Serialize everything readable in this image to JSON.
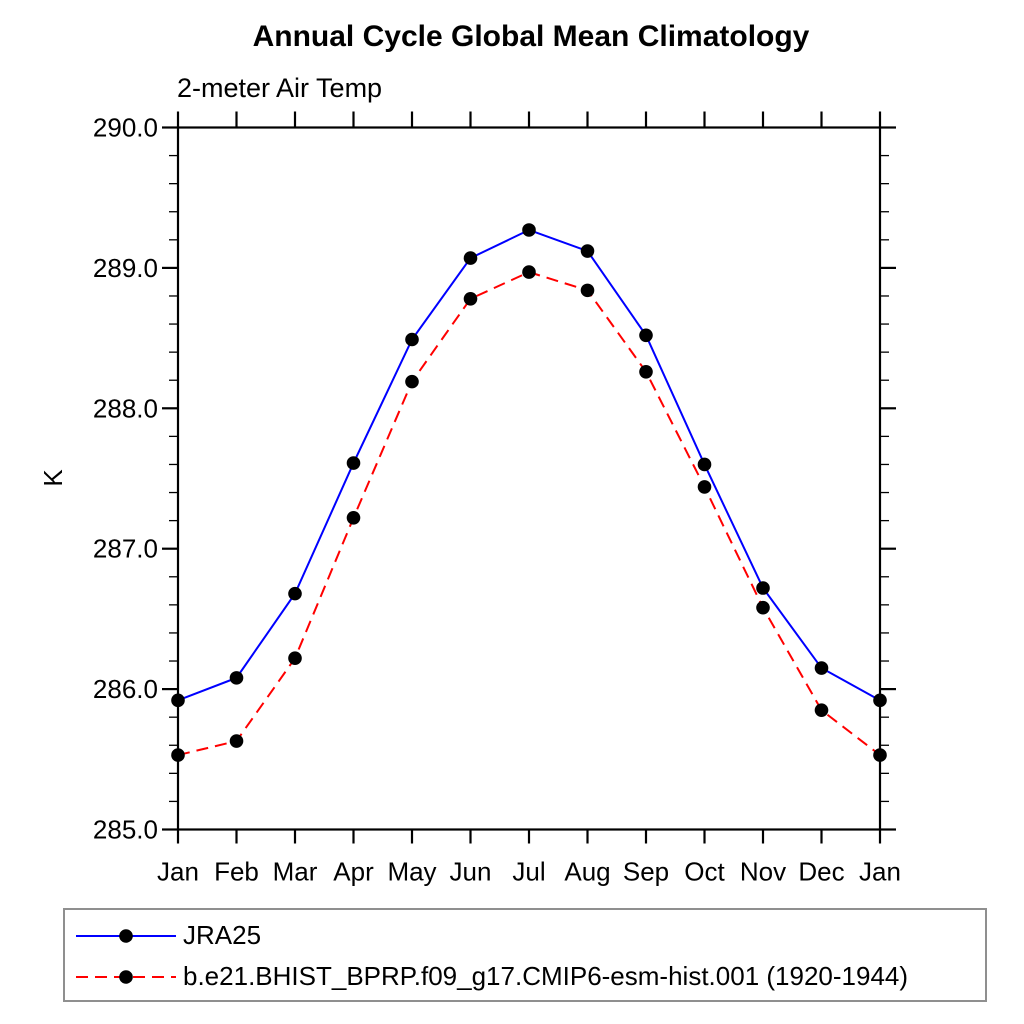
{
  "chart_data": {
    "type": "line",
    "title": "Annual Cycle Global Mean Climatology",
    "subtitle": "2-meter Air Temp",
    "xlabel": "",
    "ylabel": "K",
    "ylim": [
      285.0,
      290.0
    ],
    "ytick_major_interval": 1.0,
    "ytick_minor_interval": 0.2,
    "ytick_labels": [
      "285.0",
      "286.0",
      "287.0",
      "288.0",
      "289.0",
      "290.0"
    ],
    "grid": false,
    "legend_position": "bottom-left-box",
    "categories": [
      "Jan",
      "Feb",
      "Mar",
      "Apr",
      "May",
      "Jun",
      "Jul",
      "Aug",
      "Sep",
      "Oct",
      "Nov",
      "Dec",
      "Jan"
    ],
    "series": [
      {
        "name": "JRA25",
        "color": "#0000ff",
        "line_style": "solid",
        "marker": "filled-circle",
        "marker_color": "#000000",
        "values": [
          285.92,
          286.08,
          286.68,
          287.61,
          288.49,
          289.07,
          289.27,
          289.12,
          288.52,
          287.6,
          286.72,
          286.15,
          285.92
        ]
      },
      {
        "name": "b.e21.BHIST_BPRP.f09_g17.CMIP6-esm-hist.001 (1920-1944)",
        "color": "#ff0000",
        "line_style": "dashed",
        "marker": "filled-circle",
        "marker_color": "#000000",
        "values": [
          285.53,
          285.63,
          286.22,
          287.22,
          288.19,
          288.78,
          288.97,
          288.84,
          288.26,
          287.44,
          286.58,
          285.85,
          285.53
        ]
      }
    ],
    "colors": {
      "axis": "#000000",
      "background": "#ffffff",
      "legend_border": "#8f8f8f"
    }
  }
}
